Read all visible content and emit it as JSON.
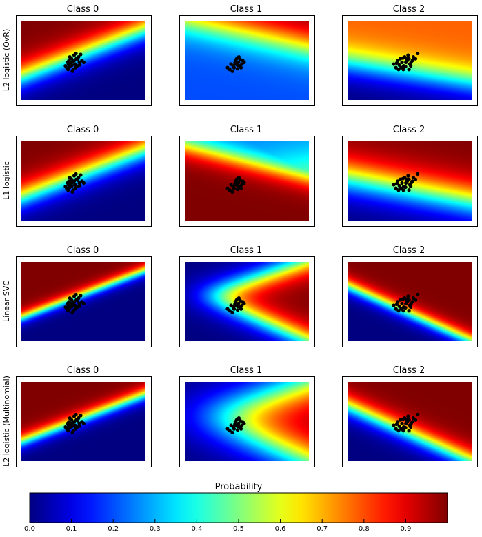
{
  "chart_data": {
    "type": "heatmap",
    "title": "",
    "column_titles": [
      "Class 0",
      "Class 1",
      "Class 2"
    ],
    "row_labels": [
      "L2 logistic (OvR)",
      "L1 logistic",
      "Linear SVC",
      "L2 logistic (Multinomial)"
    ],
    "colorbar": {
      "label": "Probability",
      "colormap": "jet",
      "range": [
        0,
        1
      ],
      "ticks": [
        "0.0",
        "0.1",
        "0.2",
        "0.3",
        "0.4",
        "0.5",
        "0.6",
        "0.7",
        "0.8",
        "0.9"
      ]
    },
    "axes_ticks": false,
    "marker_color": "#000000",
    "panels": [
      {
        "row": 0,
        "col": 0,
        "type": "linear",
        "a": 0.6,
        "b": 0.25,
        "c": 0.6,
        "scale": 10,
        "min": 0,
        "max": 1
      },
      {
        "row": 0,
        "col": 1,
        "type": "linear",
        "a": -0.35,
        "b": 0.75,
        "c": 0.85,
        "scale": 2.5,
        "min": 0.2,
        "max": 1
      },
      {
        "row": 0,
        "col": 2,
        "type": "linear",
        "a": -0.25,
        "b": 0.35,
        "c": 0.35,
        "scale": 6,
        "min": 0,
        "max": 0.78
      },
      {
        "row": 1,
        "col": 0,
        "type": "linear",
        "a": 0.6,
        "b": 0.25,
        "c": 0.6,
        "scale": 10,
        "min": 0,
        "max": 1
      },
      {
        "row": 1,
        "col": 1,
        "type": "combo",
        "a": -0.4,
        "b": 0.35,
        "c": 0.75,
        "scale": 7,
        "min": 0.1,
        "max": 1,
        "floor_a": 0.3,
        "floor_b": 0.3,
        "floor_c": 0.55,
        "floor_scale": 5,
        "floor_value": 0.48
      },
      {
        "row": 1,
        "col": 2,
        "type": "linear",
        "a": -0.3,
        "b": 0.3,
        "c": 0.4,
        "scale": 6,
        "min": 0,
        "max": 1
      },
      {
        "row": 2,
        "col": 0,
        "type": "linear",
        "a": 0.6,
        "b": 0.25,
        "c": 0.6,
        "scale": 22,
        "min": 0,
        "max": 1
      },
      {
        "row": 2,
        "col": 1,
        "type": "wedge",
        "a1": -0.7,
        "b1": 0.35,
        "c1": 0.35,
        "a2": 0.55,
        "b2": 0.45,
        "c2": 0.75,
        "scale": 20,
        "min": 0,
        "max": 1
      },
      {
        "row": 2,
        "col": 2,
        "type": "linear",
        "a": -0.7,
        "b": 0.3,
        "c": 0.35,
        "scale": 14,
        "min": 0,
        "max": 1
      },
      {
        "row": 3,
        "col": 0,
        "type": "linear",
        "a": 0.6,
        "b": 0.25,
        "c": 0.55,
        "scale": 18,
        "min": 0,
        "max": 1
      },
      {
        "row": 3,
        "col": 1,
        "type": "wedge",
        "a1": -0.7,
        "b1": 0.35,
        "c1": 0.35,
        "a2": 0.55,
        "b2": 0.45,
        "c2": 0.72,
        "scale": 12,
        "min": 0,
        "max": 1
      },
      {
        "row": 3,
        "col": 2,
        "type": "linear",
        "a": -0.7,
        "b": 0.25,
        "c": 0.35,
        "scale": 12,
        "min": 0,
        "max": 1
      }
    ],
    "points": {
      "class_0": [
        [
          0.3,
          0.4
        ],
        [
          0.33,
          0.35
        ],
        [
          0.37,
          0.45
        ],
        [
          0.4,
          0.38
        ],
        [
          0.42,
          0.5
        ],
        [
          0.45,
          0.42
        ],
        [
          0.48,
          0.3
        ],
        [
          0.5,
          0.55
        ],
        [
          0.52,
          0.45
        ],
        [
          0.55,
          0.6
        ],
        [
          0.57,
          0.4
        ],
        [
          0.6,
          0.65
        ],
        [
          0.62,
          0.5
        ],
        [
          0.65,
          0.72
        ],
        [
          0.38,
          0.55
        ],
        [
          0.44,
          0.6
        ],
        [
          0.5,
          0.7
        ],
        [
          0.35,
          0.5
        ],
        [
          0.47,
          0.52
        ],
        [
          0.53,
          0.35
        ],
        [
          0.4,
          0.65
        ],
        [
          0.58,
          0.58
        ],
        [
          0.63,
          0.43
        ],
        [
          0.46,
          0.25
        ],
        [
          0.36,
          0.3
        ],
        [
          0.54,
          0.75
        ],
        [
          0.68,
          0.55
        ],
        [
          0.72,
          0.5
        ]
      ],
      "class_1": [
        [
          0.27,
          0.35
        ],
        [
          0.32,
          0.3
        ],
        [
          0.38,
          0.25
        ],
        [
          0.42,
          0.35
        ],
        [
          0.46,
          0.45
        ],
        [
          0.5,
          0.42
        ],
        [
          0.52,
          0.5
        ],
        [
          0.55,
          0.4
        ],
        [
          0.58,
          0.35
        ],
        [
          0.45,
          0.55
        ],
        [
          0.48,
          0.6
        ],
        [
          0.53,
          0.65
        ],
        [
          0.6,
          0.45
        ],
        [
          0.62,
          0.55
        ],
        [
          0.4,
          0.4
        ],
        [
          0.5,
          0.32
        ],
        [
          0.56,
          0.58
        ],
        [
          0.44,
          0.48
        ],
        [
          0.35,
          0.45
        ],
        [
          0.65,
          0.5
        ]
      ],
      "class_2": [
        [
          0.35,
          0.45
        ],
        [
          0.4,
          0.35
        ],
        [
          0.44,
          0.55
        ],
        [
          0.48,
          0.42
        ],
        [
          0.5,
          0.6
        ],
        [
          0.54,
          0.5
        ],
        [
          0.58,
          0.4
        ],
        [
          0.6,
          0.65
        ],
        [
          0.63,
          0.5
        ],
        [
          0.66,
          0.55
        ],
        [
          0.7,
          0.6
        ],
        [
          0.72,
          0.45
        ],
        [
          0.75,
          0.5
        ],
        [
          0.8,
          0.65
        ],
        [
          0.85,
          0.6
        ],
        [
          0.9,
          0.75
        ],
        [
          0.46,
          0.3
        ],
        [
          0.52,
          0.35
        ],
        [
          0.56,
          0.62
        ],
        [
          0.62,
          0.38
        ],
        [
          0.68,
          0.7
        ],
        [
          0.74,
          0.4
        ],
        [
          0.78,
          0.55
        ],
        [
          0.42,
          0.48
        ],
        [
          0.57,
          0.3
        ],
        [
          0.65,
          0.6
        ],
        [
          0.7,
          0.3
        ]
      ]
    }
  }
}
